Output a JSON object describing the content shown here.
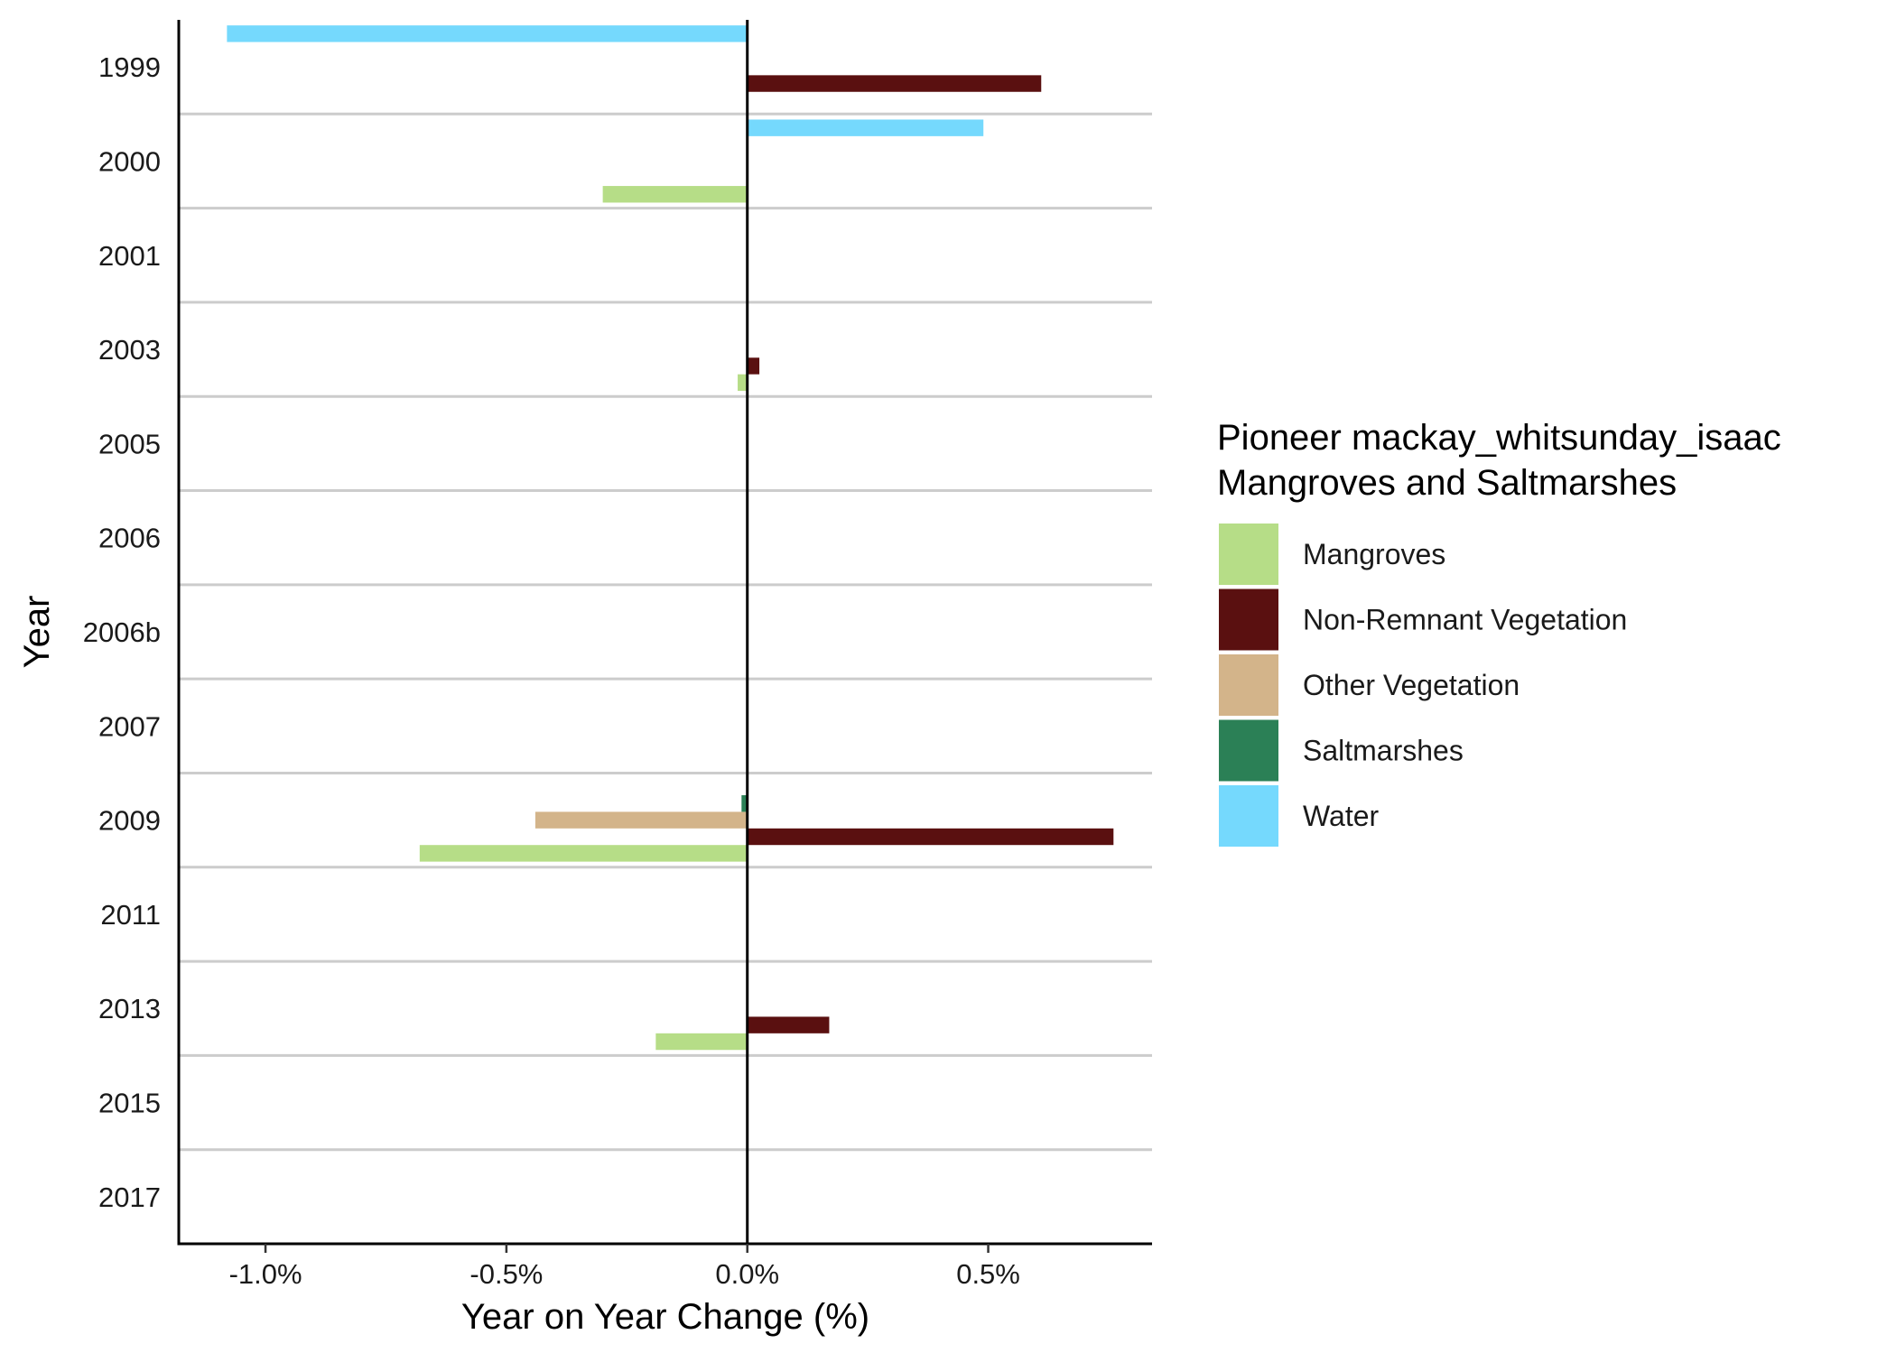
{
  "chart_data": {
    "type": "bar",
    "orientation": "horizontal",
    "title": "",
    "xlabel": "Year on Year Change (%)",
    "ylabel": "Year",
    "xlim": [
      -1.18,
      0.84
    ],
    "x_ticks": [
      -1.0,
      -0.5,
      0.0,
      0.5
    ],
    "x_tick_labels": [
      "-1.0%",
      "-0.5%",
      "0.0%",
      "0.5%"
    ],
    "categories": [
      "1999",
      "2000",
      "2001",
      "2003",
      "2005",
      "2006",
      "2006b",
      "2007",
      "2009",
      "2011",
      "2013",
      "2015",
      "2017"
    ],
    "grid": "horizontal separators between categories",
    "legend": {
      "title_lines": [
        "Pioneer mackay_whitsunday_isaac",
        "Mangroves and Saltmarshes"
      ],
      "placement": "right"
    },
    "series": [
      {
        "name": "Mangroves",
        "color": "#b6dd87",
        "values": [
          null,
          -0.3,
          null,
          -0.02,
          null,
          null,
          null,
          0.0,
          -0.68,
          null,
          -0.19,
          null,
          null
        ]
      },
      {
        "name": "Non-Remnant Vegetation",
        "color": "#5a1010",
        "values": [
          0.61,
          null,
          null,
          0.025,
          null,
          null,
          null,
          0.0,
          0.76,
          null,
          0.17,
          null,
          null
        ]
      },
      {
        "name": "Other Vegetation",
        "color": "#d3b48a",
        "values": [
          null,
          null,
          null,
          null,
          null,
          null,
          null,
          null,
          -0.44,
          null,
          null,
          null,
          null
        ]
      },
      {
        "name": "Saltmarshes",
        "color": "#2b8056",
        "values": [
          null,
          null,
          null,
          null,
          null,
          null,
          null,
          null,
          -0.012,
          null,
          null,
          null,
          null
        ]
      },
      {
        "name": "Water",
        "color": "#75d9fd",
        "values": [
          -1.08,
          0.49,
          null,
          null,
          null,
          null,
          null,
          null,
          null,
          null,
          null,
          null,
          null
        ]
      }
    ]
  }
}
